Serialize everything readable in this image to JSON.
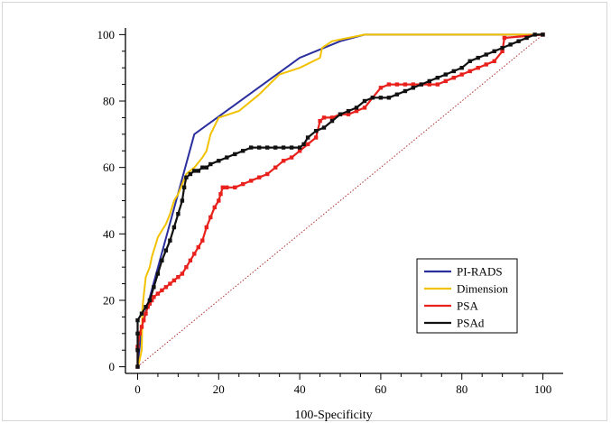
{
  "chart_data": {
    "type": "line",
    "title": "",
    "xlabel": "100-Specificity",
    "ylabel": "",
    "xlim": [
      -3,
      105
    ],
    "ylim": [
      -2,
      102
    ],
    "xticks": [
      0,
      20,
      40,
      60,
      80,
      100
    ],
    "yticks": [
      0,
      20,
      40,
      60,
      80,
      100
    ],
    "xtick_labels": [
      "0",
      "20",
      "40",
      "60",
      "80",
      "100"
    ],
    "ytick_labels": [
      "0",
      "20",
      "40",
      "60",
      "80",
      "100"
    ],
    "legend_position": "bottom-right",
    "reference_line": {
      "x": [
        0,
        100
      ],
      "y": [
        0,
        100
      ],
      "color": "#b03030",
      "style": "dotted"
    },
    "series": [
      {
        "name": "PI-RADS",
        "color": "#2b2f9e",
        "markers": false,
        "x": [
          0,
          1,
          14,
          40,
          50,
          56,
          100
        ],
        "y": [
          0,
          12,
          70,
          93,
          98,
          100,
          100
        ]
      },
      {
        "name": "Dimension",
        "color": "#f2c200",
        "markers": false,
        "x": [
          0,
          0.5,
          1,
          1.2,
          2,
          3,
          3.5,
          4,
          4.5,
          5,
          6,
          7,
          8,
          9,
          10,
          11,
          12,
          14,
          16,
          17,
          18,
          20,
          25,
          30,
          35,
          40,
          45,
          45.5,
          48,
          52,
          56,
          100
        ],
        "y": [
          0,
          2,
          5,
          18,
          27,
          30,
          33,
          35,
          37,
          39,
          41,
          43,
          46,
          50,
          52,
          55,
          58,
          60,
          63,
          65,
          70,
          75,
          77,
          82,
          88,
          90,
          93,
          96,
          98,
          99,
          100,
          100
        ]
      },
      {
        "name": "PSA",
        "color": "#e8211d",
        "markers": true,
        "x": [
          0,
          0,
          0.5,
          1,
          1.5,
          2,
          2.5,
          3,
          3.5,
          4,
          5,
          6,
          7,
          8,
          9,
          10,
          11,
          12,
          13,
          14,
          15,
          16,
          17,
          18,
          19,
          20,
          20.5,
          21,
          22,
          24,
          26,
          28,
          30,
          32,
          34,
          36,
          38,
          40,
          42,
          44,
          45,
          46,
          48,
          50,
          52,
          54,
          56,
          58,
          60,
          62,
          64,
          66,
          68,
          70,
          72,
          74,
          76,
          78,
          80,
          82,
          84,
          86,
          88,
          90,
          90.5,
          100
        ],
        "y": [
          0,
          6,
          10,
          12,
          14,
          16,
          18,
          19,
          20,
          21,
          22,
          23,
          24,
          25,
          26,
          27,
          28,
          30,
          32,
          34,
          36,
          38,
          42,
          45,
          48,
          50,
          52,
          54,
          54,
          54,
          55,
          56,
          57,
          58,
          60,
          62,
          63,
          65,
          67,
          69,
          74,
          75,
          75,
          76,
          76,
          77,
          78,
          81,
          84,
          85,
          85,
          85,
          85,
          85,
          85,
          85,
          86,
          87,
          88,
          89,
          90,
          91,
          92,
          95,
          99,
          100
        ]
      },
      {
        "name": "PSAd",
        "color": "#111111",
        "markers": true,
        "x": [
          0,
          0,
          0,
          0,
          1,
          2,
          3,
          4,
          5,
          6,
          7,
          8,
          9,
          10,
          11,
          11.5,
          12,
          13,
          14,
          15,
          16,
          17,
          18,
          20,
          22,
          24,
          26,
          28,
          30,
          32,
          34,
          36,
          38,
          40,
          41,
          42,
          44,
          46,
          48,
          50,
          52,
          54,
          56,
          58,
          60,
          62,
          64,
          66,
          68,
          70,
          72,
          74,
          76,
          78,
          80,
          82,
          84,
          86,
          88,
          90,
          92,
          94,
          96,
          98,
          100
        ],
        "y": [
          0,
          5,
          10,
          14,
          16,
          18,
          20,
          24,
          28,
          32,
          35,
          38,
          42,
          46,
          50,
          54,
          57,
          58,
          59,
          59,
          60,
          60,
          61,
          62,
          63,
          64,
          65,
          66,
          66,
          66,
          66,
          66,
          66,
          66,
          67,
          69,
          71,
          72,
          74,
          76,
          77,
          78,
          80,
          81,
          81,
          81,
          82,
          83,
          84,
          85,
          86,
          87,
          88,
          89,
          90,
          92,
          93,
          94,
          95,
          96,
          97,
          98,
          99,
          100,
          100
        ]
      }
    ]
  }
}
